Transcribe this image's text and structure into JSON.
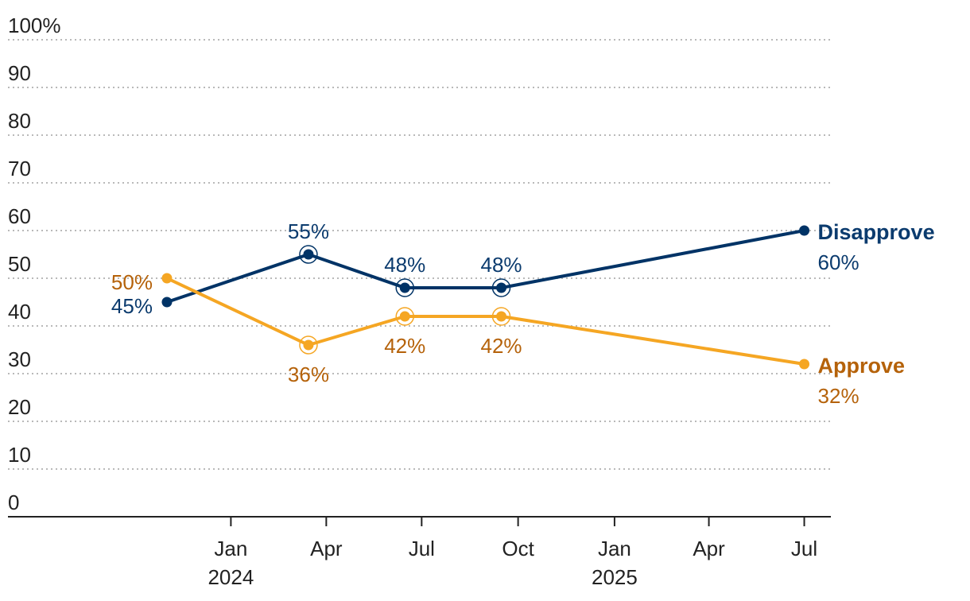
{
  "chart_data": {
    "type": "line",
    "ylim": [
      0,
      100
    ],
    "y_ticks": [
      "0",
      "10",
      "20",
      "30",
      "40",
      "50",
      "60",
      "70",
      "80",
      "90",
      "100%"
    ],
    "y_tick_values": [
      0,
      10,
      20,
      30,
      40,
      50,
      60,
      70,
      80,
      90,
      100
    ],
    "grid": true,
    "x_range": [
      "2023-09-15",
      "2025-07-15"
    ],
    "x_ticks": [
      {
        "date": "2024-01-01",
        "label": "Jan",
        "year": "2024"
      },
      {
        "date": "2024-04-01",
        "label": "Apr",
        "year": ""
      },
      {
        "date": "2024-07-01",
        "label": "Jul",
        "year": ""
      },
      {
        "date": "2024-10-01",
        "label": "Oct",
        "year": ""
      },
      {
        "date": "2025-01-01",
        "label": "Jan",
        "year": "2025"
      },
      {
        "date": "2025-04-01",
        "label": "Apr",
        "year": ""
      },
      {
        "date": "2025-07-01",
        "label": "Jul",
        "year": ""
      }
    ],
    "series": [
      {
        "name": "Disapprove",
        "color": "#003366",
        "label_color": "#0b3b6e",
        "end_label_value": "60%",
        "points": [
          {
            "x": "2023-11-01",
            "y": 45,
            "label": "45%",
            "label_pos": "left",
            "ring": false
          },
          {
            "x": "2024-03-15",
            "y": 55,
            "label": "55%",
            "label_pos": "above",
            "ring": true
          },
          {
            "x": "2024-06-15",
            "y": 48,
            "label": "48%",
            "label_pos": "above",
            "ring": true
          },
          {
            "x": "2024-09-15",
            "y": 48,
            "label": "48%",
            "label_pos": "above",
            "ring": true
          },
          {
            "x": "2025-07-01",
            "y": 60,
            "label": "",
            "label_pos": "none",
            "ring": false
          }
        ]
      },
      {
        "name": "Approve",
        "color": "#f5a623",
        "label_color": "#b5620a",
        "end_label_value": "32%",
        "points": [
          {
            "x": "2023-11-01",
            "y": 50,
            "label": "50%",
            "label_pos": "left",
            "ring": false
          },
          {
            "x": "2024-03-15",
            "y": 36,
            "label": "36%",
            "label_pos": "below",
            "ring": true
          },
          {
            "x": "2024-06-15",
            "y": 42,
            "label": "42%",
            "label_pos": "below",
            "ring": true
          },
          {
            "x": "2024-09-15",
            "y": 42,
            "label": "42%",
            "label_pos": "below",
            "ring": true
          },
          {
            "x": "2025-07-01",
            "y": 32,
            "label": "",
            "label_pos": "none",
            "ring": false
          }
        ]
      }
    ]
  }
}
